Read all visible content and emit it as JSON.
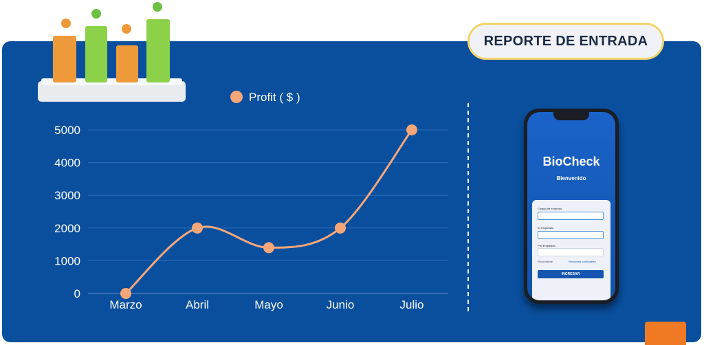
{
  "header": {
    "badge_label": "REPORTE DE ENTRADA"
  },
  "colors": {
    "panel": "#0a4f9e",
    "line": "#f6a77a",
    "badge_border": "#f2d46b",
    "accent": "#f07a24"
  },
  "chart_data": {
    "type": "line",
    "categories": [
      "Marzo",
      "Abril",
      "Mayo",
      "Junio",
      "Julio"
    ],
    "series": [
      {
        "name": "Profit ( $ )",
        "values": [
          0,
          2000,
          1400,
          2000,
          5000
        ]
      }
    ],
    "yticks": [
      0,
      1000,
      2000,
      3000,
      4000,
      5000
    ],
    "ylim": [
      0,
      5000
    ],
    "grid": true,
    "legend": "top"
  },
  "phone": {
    "logo": "BioCheck",
    "welcome": "Bienvenido",
    "company_label": "Código de empresa",
    "employee_label": "ID Empleado",
    "pin_label": "PIN Empleado",
    "remember_label": "Recordarme",
    "forgot_label": "Recuperar contraseña",
    "button_label": "INGRESAR"
  }
}
